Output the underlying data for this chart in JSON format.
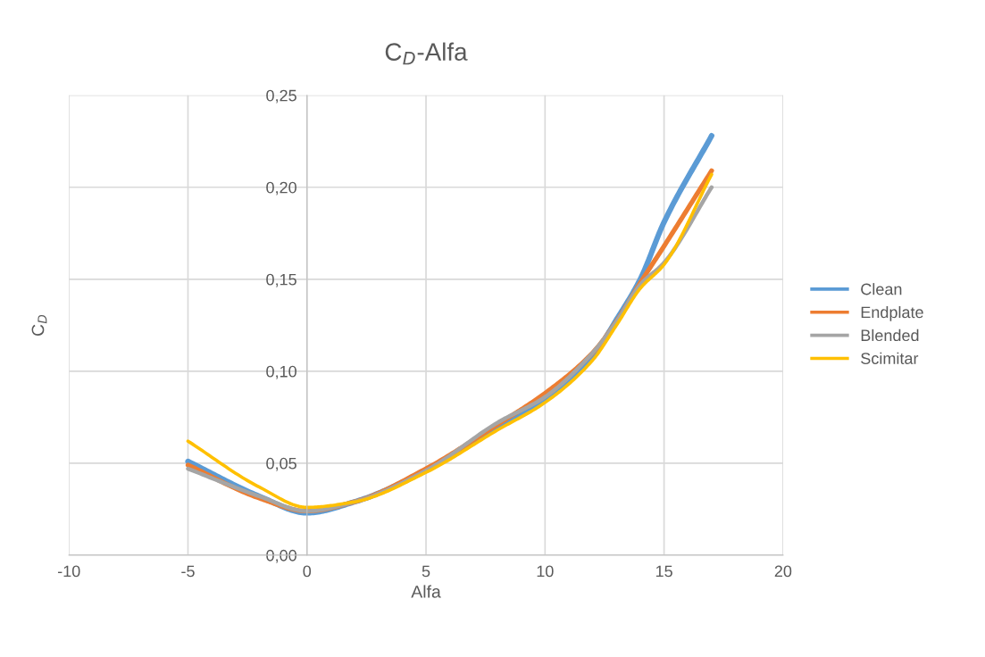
{
  "chart_data": {
    "type": "line",
    "title": "C$_{D}$-Alfa",
    "xlabel": "Alfa",
    "ylabel": "C$_{D}$",
    "x": [
      -5,
      -2,
      0,
      2,
      5,
      8,
      10,
      12,
      13,
      14,
      15,
      17
    ],
    "series": [
      {
        "name": "Clean",
        "color": "#5b9bd5",
        "values": [
          0.051,
          0.032,
          0.023,
          0.029,
          0.046,
          0.07,
          0.085,
          0.108,
          0.128,
          0.15,
          0.181,
          0.228
        ]
      },
      {
        "name": "Endplate",
        "color": "#ed7d31",
        "values": [
          0.049,
          0.031,
          0.024,
          0.029,
          0.047,
          0.071,
          0.088,
          0.11,
          0.127,
          0.148,
          0.168,
          0.209
        ]
      },
      {
        "name": "Blended",
        "color": "#a5a5a5",
        "values": [
          0.047,
          0.032,
          0.024,
          0.029,
          0.046,
          0.072,
          0.086,
          0.11,
          0.127,
          0.147,
          0.159,
          0.2
        ]
      },
      {
        "name": "Scimitar",
        "color": "#ffc000",
        "values": [
          0.062,
          0.037,
          0.026,
          0.029,
          0.045,
          0.068,
          0.083,
          0.106,
          0.125,
          0.145,
          0.158,
          0.207
        ]
      }
    ],
    "xlim": [
      -10,
      20
    ],
    "xticks": [
      -10,
      -5,
      0,
      5,
      10,
      15,
      20
    ],
    "ylim": [
      0,
      0.25
    ],
    "yticks": [
      {
        "value": 0,
        "label": "0,00"
      },
      {
        "value": 0.05,
        "label": "0,05"
      },
      {
        "value": 0.1,
        "label": "0,10"
      },
      {
        "value": 0.15,
        "label": "0,15"
      },
      {
        "value": 0.2,
        "label": "0,20"
      },
      {
        "value": 0.25,
        "label": "0,25"
      }
    ],
    "grid": true,
    "legend": "right",
    "marker": "none",
    "line_style": "solid"
  }
}
